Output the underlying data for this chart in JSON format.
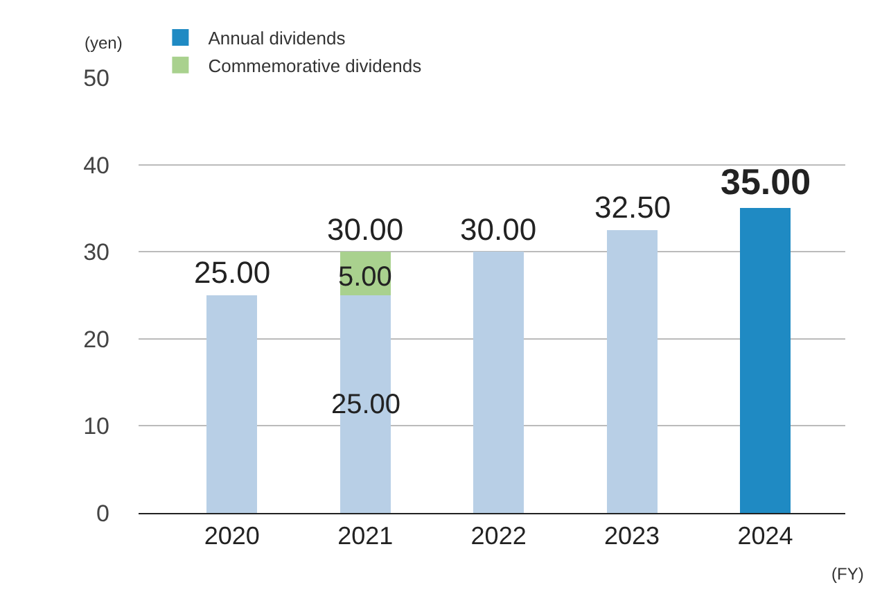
{
  "chart_data": {
    "type": "bar",
    "stacked": true,
    "categories": [
      "2020",
      "2021",
      "2022",
      "2023",
      "2024"
    ],
    "series": [
      {
        "name": "Annual dividends",
        "color": "#1f8ac3",
        "colors": [
          "#b8cfe6",
          "#b8cfe6",
          "#b8cfe6",
          "#b8cfe6",
          "#1f8ac3"
        ],
        "values": [
          25,
          25,
          30,
          32.5,
          35
        ],
        "value_labels": [
          null,
          "25.00",
          null,
          null,
          null
        ]
      },
      {
        "name": "Commemorative dividends",
        "color": "#a9d18e",
        "values": [
          null,
          5,
          null,
          null,
          null
        ],
        "value_labels": [
          null,
          "5.00",
          null,
          null,
          null
        ]
      }
    ],
    "totals": [
      "25.00",
      "30.00",
      "30.00",
      "32.50",
      "35.00"
    ],
    "ylim": [
      0,
      50
    ],
    "yticks": [
      0,
      10,
      20,
      30,
      40,
      50
    ],
    "grid": "y",
    "legend": "top left",
    "ylabel": "(yen)",
    "xlabel": "(FY)"
  }
}
